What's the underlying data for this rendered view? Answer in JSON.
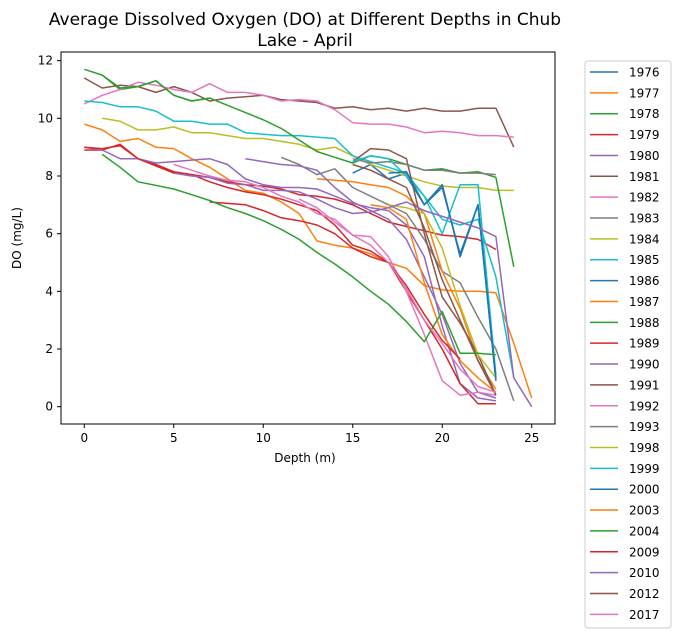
{
  "chart_data": {
    "type": "line",
    "title": "Average Dissolved Oxygen (DO) at Different Depths in Chub Lake - April",
    "title_lines": [
      "Average Dissolved Oxygen (DO) at Different Depths in Chub",
      "Lake - April"
    ],
    "xlabel": "Depth (m)",
    "ylabel": "DO (mg/L)",
    "xlim": [
      -1.3,
      26.3
    ],
    "ylim": [
      -0.6,
      12.3
    ],
    "xticks": [
      0,
      5,
      10,
      15,
      20,
      25
    ],
    "yticks": [
      0,
      2,
      4,
      6,
      8,
      10,
      12
    ],
    "grid": false,
    "legend_position": "outside-right",
    "series": [
      {
        "name": "1976",
        "color": "#1f77b4",
        "x": [
          15,
          16,
          17,
          18,
          19,
          20,
          21,
          22,
          23
        ],
        "y": [
          8.1,
          8.4,
          7.9,
          8.1,
          7.0,
          7.7,
          5.2,
          7.0,
          0.9
        ]
      },
      {
        "name": "1977",
        "color": "#ff7f0e",
        "x": [
          0,
          1,
          2,
          3,
          4,
          5,
          6,
          7,
          8,
          9,
          10,
          11,
          12,
          13,
          14,
          15,
          16,
          17,
          18,
          19,
          20,
          21,
          22,
          23,
          24,
          25
        ],
        "y": [
          9.8,
          9.6,
          9.2,
          9.3,
          9.0,
          8.95,
          8.6,
          8.3,
          7.9,
          7.5,
          7.4,
          7.1,
          6.7,
          5.75,
          5.6,
          5.5,
          5.3,
          5.0,
          4.8,
          4.2,
          4.05,
          4.0,
          4.0,
          3.95,
          2.2,
          0.3
        ]
      },
      {
        "name": "1978",
        "color": "#2ca02c",
        "x": [
          0,
          1,
          2,
          3,
          4,
          5,
          6,
          7
        ],
        "y": [
          11.7,
          11.5,
          11.0,
          11.1,
          11.3,
          10.8,
          10.6,
          10.7
        ]
      },
      {
        "name": "1979",
        "color": "#d62728",
        "x": [
          0,
          1,
          2,
          3,
          4,
          5,
          6,
          7,
          8,
          9,
          10,
          11,
          12,
          13,
          14,
          15,
          16,
          17,
          18,
          19,
          20,
          21,
          22,
          23
        ],
        "y": [
          8.9,
          8.9,
          9.1,
          8.6,
          8.4,
          8.15,
          8.05,
          7.95,
          7.8,
          7.7,
          7.65,
          7.55,
          7.35,
          7.3,
          7.2,
          7.0,
          6.7,
          6.4,
          6.25,
          6.1,
          5.95,
          5.9,
          5.8,
          5.45
        ]
      },
      {
        "name": "1980",
        "color": "#9467bd",
        "x": [
          0,
          1,
          2,
          3,
          4,
          5,
          6,
          7,
          8,
          9,
          10,
          11,
          12,
          13,
          14,
          15,
          16,
          17,
          18,
          19,
          20,
          21,
          22,
          23
        ],
        "y": [
          9.0,
          8.9,
          8.6,
          8.6,
          8.45,
          8.5,
          8.55,
          8.6,
          8.4,
          7.9,
          7.7,
          7.6,
          7.6,
          7.55,
          7.3,
          7.05,
          6.9,
          6.8,
          6.3,
          5.2,
          2.8,
          0.8,
          0.3,
          0.2
        ]
      },
      {
        "name": "1981",
        "color": "#8c564b",
        "x": [
          0,
          1,
          2,
          3,
          4,
          5,
          6,
          7,
          8,
          9,
          10,
          11,
          12,
          13,
          14,
          15,
          16,
          17,
          18,
          19,
          20,
          21,
          22,
          23,
          24
        ],
        "y": [
          11.4,
          11.05,
          11.15,
          11.1,
          10.9,
          11.1,
          10.9,
          10.6,
          10.7,
          10.75,
          10.8,
          10.65,
          10.6,
          10.55,
          10.35,
          10.4,
          10.3,
          10.35,
          10.25,
          10.35,
          10.25,
          10.25,
          10.35,
          10.35,
          9.0
        ]
      },
      {
        "name": "1982",
        "color": "#e377c2",
        "x": [
          0,
          1,
          2,
          3,
          4,
          5,
          6,
          7,
          8,
          9,
          10,
          11,
          12,
          13,
          14,
          15,
          16,
          17,
          18,
          19,
          20,
          21,
          22,
          23,
          24
        ],
        "y": [
          10.5,
          10.8,
          11.0,
          11.25,
          11.15,
          11.0,
          10.9,
          11.2,
          10.9,
          10.9,
          10.8,
          10.6,
          10.65,
          10.6,
          10.3,
          9.85,
          9.8,
          9.8,
          9.7,
          9.5,
          9.55,
          9.5,
          9.4,
          9.4,
          9.35
        ]
      },
      {
        "name": "1983",
        "color": "#7f7f7f",
        "x": [
          11,
          12,
          13,
          14,
          15,
          16,
          17,
          18,
          19,
          20,
          21,
          22,
          23,
          24
        ],
        "y": [
          8.65,
          8.4,
          8.05,
          8.25,
          7.6,
          7.3,
          7.0,
          6.7,
          5.8,
          4.7,
          4.3,
          3.1,
          2.0,
          0.2
        ]
      },
      {
        "name": "1984",
        "color": "#bcbd22",
        "x": [
          1,
          2,
          3,
          4,
          5,
          6,
          7,
          8,
          9,
          10,
          11,
          12,
          13,
          14,
          15,
          16,
          17,
          18,
          19,
          20,
          21,
          22,
          23,
          24
        ],
        "y": [
          10.0,
          9.9,
          9.6,
          9.6,
          9.7,
          9.5,
          9.5,
          9.4,
          9.3,
          9.3,
          9.2,
          9.1,
          8.9,
          9.0,
          8.7,
          8.4,
          8.2,
          8.0,
          7.8,
          7.65,
          7.6,
          7.6,
          7.5,
          7.5
        ]
      },
      {
        "name": "1985",
        "color": "#17becf",
        "x": [
          0,
          1,
          2,
          3,
          4,
          5,
          6,
          7,
          8,
          9,
          10,
          11,
          12,
          13,
          14,
          15,
          16,
          17,
          18,
          19,
          20,
          21,
          22,
          23,
          24
        ],
        "y": [
          10.6,
          10.55,
          10.4,
          10.4,
          10.25,
          9.9,
          9.9,
          9.8,
          9.8,
          9.5,
          9.45,
          9.4,
          9.4,
          9.35,
          9.3,
          8.7,
          8.5,
          8.3,
          8.1,
          7.3,
          6.5,
          6.3,
          6.5,
          4.5,
          1.0
        ]
      },
      {
        "name": "1986",
        "color": "#1f77b4",
        "x": [
          18,
          19,
          20,
          21,
          22,
          23
        ],
        "y": [
          8.0,
          7.0,
          7.7,
          5.2,
          7.0,
          0.9
        ]
      },
      {
        "name": "1987",
        "color": "#ff7f0e",
        "x": [
          13,
          14,
          15,
          16,
          17,
          18,
          19,
          20,
          21,
          22,
          23
        ],
        "y": [
          7.9,
          7.85,
          7.8,
          7.7,
          7.6,
          7.3,
          6.7,
          4.7,
          3.4,
          1.6,
          0.6
        ]
      },
      {
        "name": "1988",
        "color": "#2ca02c",
        "x": [
          1,
          2,
          3,
          4,
          5,
          6,
          7,
          8,
          9,
          10,
          11,
          12,
          13,
          14,
          15,
          16,
          17,
          18,
          19,
          20,
          21,
          22,
          23,
          24
        ],
        "y": [
          11.5,
          11.05,
          11.1,
          11.3,
          10.8,
          10.6,
          10.7,
          10.45,
          10.2,
          9.95,
          9.65,
          9.25,
          8.85,
          8.65,
          8.45,
          8.7,
          8.6,
          8.4,
          8.2,
          8.25,
          8.1,
          8.15,
          7.95,
          4.85
        ]
      },
      {
        "name": "1989",
        "color": "#d62728",
        "x": [
          7,
          8,
          9,
          10,
          11,
          12,
          13,
          14,
          15,
          16,
          17,
          18,
          19,
          20,
          21,
          22,
          23
        ],
        "y": [
          7.1,
          7.05,
          7.0,
          6.8,
          6.55,
          6.45,
          6.3,
          6.0,
          5.5,
          5.2,
          5.0,
          4.0,
          3.0,
          2.0,
          0.8,
          0.1,
          0.1
        ]
      },
      {
        "name": "1990",
        "color": "#9467bd",
        "x": [
          9,
          10,
          11,
          12,
          13,
          14,
          15,
          16,
          17,
          18,
          19,
          20,
          21,
          22,
          23
        ],
        "y": [
          8.6,
          8.5,
          8.4,
          8.35,
          8.2,
          7.6,
          7.1,
          6.8,
          6.5,
          5.8,
          4.5,
          3.2,
          1.5,
          0.5,
          0.3
        ]
      },
      {
        "name": "1991",
        "color": "#8c564b",
        "x": [
          15,
          16,
          17,
          18,
          19,
          20,
          21,
          22,
          23
        ],
        "y": [
          8.5,
          8.95,
          8.9,
          8.6,
          6.0,
          3.8,
          2.9,
          1.8,
          0.4
        ]
      },
      {
        "name": "1992",
        "color": "#e377c2",
        "x": [
          12,
          13,
          14,
          15,
          16,
          17,
          18,
          19,
          20,
          21,
          22,
          23
        ],
        "y": [
          7.2,
          6.9,
          6.4,
          5.95,
          5.9,
          5.2,
          4.0,
          2.5,
          0.9,
          0.4,
          0.5,
          0.4
        ]
      },
      {
        "name": "1993",
        "color": "#7f7f7f",
        "x": [
          15,
          16,
          17,
          18,
          19,
          20,
          21,
          22,
          23
        ],
        "y": [
          8.6,
          8.45,
          8.5,
          8.4,
          8.2,
          8.2,
          8.1,
          8.1,
          8.05
        ]
      },
      {
        "name": "1998",
        "color": "#bcbd22",
        "x": [
          17,
          18,
          19,
          20,
          21,
          22,
          23
        ],
        "y": [
          7.0,
          6.9,
          6.7,
          5.5,
          3.5,
          1.8,
          1.0
        ]
      },
      {
        "name": "1999",
        "color": "#17becf",
        "x": [
          15,
          16,
          17,
          18,
          19,
          20,
          21,
          22,
          23
        ],
        "y": [
          8.5,
          8.7,
          8.6,
          8.0,
          7.3,
          6.0,
          7.7,
          7.7,
          1.1
        ]
      },
      {
        "name": "2000",
        "color": "#1f77b4",
        "x": [
          17,
          18,
          19,
          20,
          21,
          22,
          23
        ],
        "y": [
          8.1,
          8.15,
          7.0,
          7.6,
          5.3,
          7.0,
          1.0
        ]
      },
      {
        "name": "2003",
        "color": "#ff7f0e",
        "x": [
          16,
          17,
          18,
          19,
          20,
          21,
          22,
          23
        ],
        "y": [
          7.0,
          6.9,
          6.5,
          4.3,
          2.5,
          1.6,
          1.0,
          0.5
        ]
      },
      {
        "name": "2004",
        "color": "#2ca02c",
        "x": [
          1,
          2,
          3,
          5,
          6,
          7,
          8,
          9,
          10,
          11,
          12,
          13,
          14,
          15,
          16,
          17,
          18,
          19,
          20,
          21,
          22,
          23
        ],
        "y": [
          8.75,
          8.3,
          7.8,
          7.55,
          7.35,
          7.15,
          6.9,
          6.7,
          6.45,
          6.15,
          5.8,
          5.35,
          4.95,
          4.5,
          4.0,
          3.55,
          2.95,
          2.25,
          3.3,
          1.85,
          1.85,
          1.8
        ]
      },
      {
        "name": "2009",
        "color": "#d62728",
        "x": [
          0,
          1,
          2,
          3,
          4,
          5,
          6,
          7,
          8,
          9,
          10,
          11,
          12,
          13,
          14,
          15,
          16,
          17,
          18,
          19,
          20,
          21
        ],
        "y": [
          9.0,
          8.95,
          9.05,
          8.6,
          8.35,
          8.1,
          8.05,
          7.8,
          7.6,
          7.45,
          7.35,
          7.2,
          7.0,
          6.8,
          6.3,
          5.6,
          5.4,
          5.0,
          4.2,
          3.2,
          2.3,
          1.65
        ]
      },
      {
        "name": "2010",
        "color": "#9467bd",
        "x": [
          5,
          6,
          7,
          8,
          9,
          10,
          11,
          12,
          13,
          14,
          15,
          16,
          17,
          18,
          19,
          20,
          21,
          22,
          23,
          24,
          25
        ],
        "y": [
          8.1,
          8.0,
          7.95,
          7.75,
          7.7,
          7.5,
          7.5,
          7.45,
          7.2,
          6.9,
          6.7,
          6.75,
          6.9,
          7.1,
          6.8,
          6.6,
          6.4,
          6.2,
          5.9,
          1.0,
          0.0
        ]
      },
      {
        "name": "2012",
        "color": "#8c564b",
        "x": [
          15,
          16,
          17,
          18,
          19,
          20,
          21,
          22,
          23
        ],
        "y": [
          8.4,
          8.2,
          7.9,
          7.6,
          6.2,
          4.4,
          3.0,
          1.6,
          0.4
        ]
      },
      {
        "name": "2017",
        "color": "#e377c2",
        "x": [
          5,
          6,
          7,
          8,
          9,
          10,
          11,
          12,
          13,
          14,
          15,
          16,
          17,
          18,
          19,
          20,
          21,
          22,
          23
        ],
        "y": [
          8.4,
          8.2,
          8.0,
          7.85,
          7.8,
          7.6,
          7.3,
          7.1,
          6.7,
          6.5,
          5.95,
          5.6,
          5.0,
          4.1,
          3.0,
          2.2,
          1.3,
          0.7,
          0.5
        ]
      }
    ]
  }
}
